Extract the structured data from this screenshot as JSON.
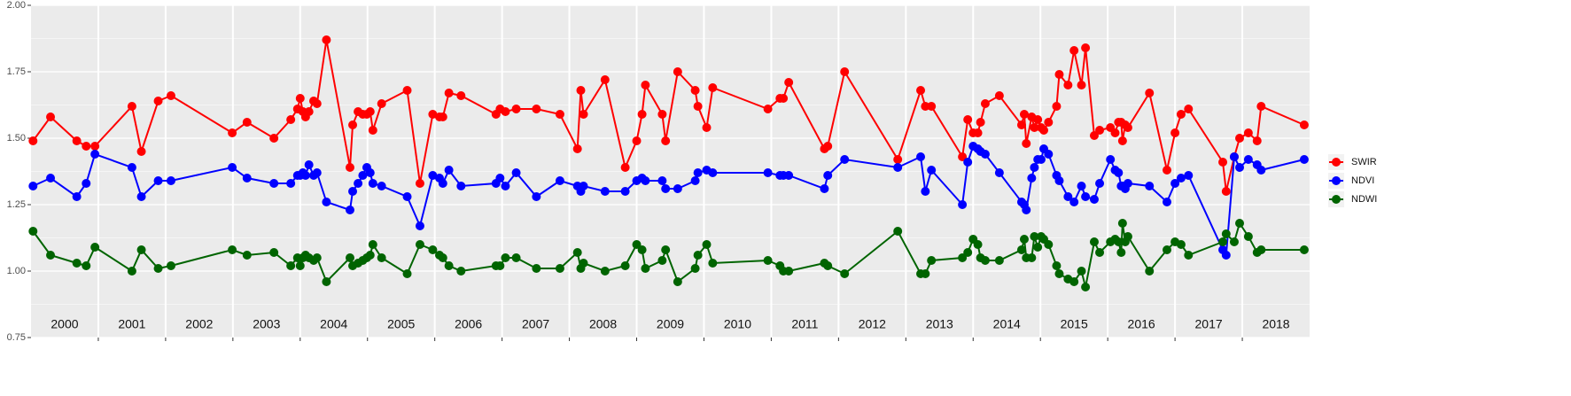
{
  "chart_data": {
    "type": "line",
    "year_labels": [
      "2000",
      "2001",
      "2002",
      "2003",
      "2004",
      "2005",
      "2006",
      "2007",
      "2008",
      "2009",
      "2010",
      "2011",
      "2012",
      "2013",
      "2014",
      "2015",
      "2016",
      "2017",
      "2018"
    ],
    "x": [
      2000.03,
      2000.29,
      2000.68,
      2000.82,
      2000.95,
      2001.5,
      2001.64,
      2001.89,
      2002.08,
      2002.99,
      2003.21,
      2003.61,
      2003.86,
      2003.96,
      2004.0,
      2004.04,
      2004.08,
      2004.13,
      2004.2,
      2004.25,
      2004.39,
      2004.74,
      2004.78,
      2004.86,
      2004.93,
      2004.99,
      2005.04,
      2005.08,
      2005.21,
      2005.59,
      2005.78,
      2005.97,
      2006.07,
      2006.12,
      2006.21,
      2006.39,
      2006.91,
      2006.97,
      2007.05,
      2007.21,
      2007.51,
      2007.86,
      2008.12,
      2008.17,
      2008.21,
      2008.53,
      2008.83,
      2009.0,
      2009.08,
      2009.13,
      2009.38,
      2009.43,
      2009.61,
      2009.87,
      2009.91,
      2010.04,
      2010.13,
      2010.95,
      2011.13,
      2011.18,
      2011.26,
      2011.79,
      2011.84,
      2012.09,
      2012.88,
      2013.22,
      2013.29,
      2013.38,
      2013.84,
      2013.92,
      2014.0,
      2014.07,
      2014.11,
      2014.18,
      2014.39,
      2014.72,
      2014.76,
      2014.79,
      2014.87,
      2014.91,
      2014.96,
      2015.01,
      2015.05,
      2015.12,
      2015.24,
      2015.28,
      2015.41,
      2015.5,
      2015.61,
      2015.67,
      2015.8,
      2015.88,
      2016.04,
      2016.11,
      2016.16,
      2016.2,
      2016.22,
      2016.26,
      2016.3,
      2016.62,
      2016.88,
      2017.0,
      2017.09,
      2017.2,
      2017.71,
      2017.76,
      2017.88,
      2017.96,
      2018.09,
      2018.22,
      2018.28,
      2018.92
    ],
    "series": [
      {
        "name": "SWIR",
        "color": "#ff0000",
        "values": [
          1.49,
          1.58,
          1.49,
          1.47,
          1.47,
          1.62,
          1.45,
          1.64,
          1.66,
          1.52,
          1.56,
          1.5,
          1.57,
          1.61,
          1.65,
          1.6,
          1.58,
          1.6,
          1.64,
          1.63,
          1.87,
          1.39,
          1.55,
          1.6,
          1.59,
          1.59,
          1.6,
          1.53,
          1.63,
          1.68,
          1.33,
          1.59,
          1.58,
          1.58,
          1.67,
          1.66,
          1.59,
          1.61,
          1.6,
          1.61,
          1.61,
          1.59,
          1.46,
          1.68,
          1.59,
          1.72,
          1.39,
          1.49,
          1.59,
          1.7,
          1.59,
          1.49,
          1.75,
          1.68,
          1.62,
          1.54,
          1.69,
          1.61,
          1.65,
          1.65,
          1.71,
          1.46,
          1.47,
          1.75,
          1.42,
          1.68,
          1.62,
          1.62,
          1.43,
          1.57,
          1.52,
          1.52,
          1.56,
          1.63,
          1.66,
          1.55,
          1.59,
          1.48,
          1.58,
          1.54,
          1.57,
          1.54,
          1.53,
          1.56,
          1.62,
          1.74,
          1.7,
          1.83,
          1.7,
          1.84,
          1.51,
          1.53,
          1.54,
          1.52,
          1.56,
          1.56,
          1.49,
          1.55,
          1.54,
          1.67,
          1.38,
          1.52,
          1.59,
          1.61,
          1.41,
          1.3,
          1.43,
          1.5,
          1.52,
          1.49,
          1.62,
          1.55
        ]
      },
      {
        "name": "NDVI",
        "color": "#0000ff",
        "values": [
          1.32,
          1.35,
          1.28,
          1.33,
          1.44,
          1.39,
          1.28,
          1.34,
          1.34,
          1.39,
          1.35,
          1.33,
          1.33,
          1.36,
          1.36,
          1.37,
          1.36,
          1.4,
          1.36,
          1.37,
          1.26,
          1.23,
          1.3,
          1.33,
          1.36,
          1.39,
          1.37,
          1.33,
          1.32,
          1.28,
          1.17,
          1.36,
          1.35,
          1.33,
          1.38,
          1.32,
          1.33,
          1.35,
          1.32,
          1.37,
          1.28,
          1.34,
          1.32,
          1.3,
          1.32,
          1.3,
          1.3,
          1.34,
          1.35,
          1.34,
          1.34,
          1.31,
          1.31,
          1.34,
          1.37,
          1.38,
          1.37,
          1.37,
          1.36,
          1.36,
          1.36,
          1.31,
          1.36,
          1.42,
          1.39,
          1.43,
          1.3,
          1.38,
          1.25,
          1.41,
          1.47,
          1.46,
          1.45,
          1.44,
          1.37,
          1.26,
          1.25,
          1.23,
          1.35,
          1.39,
          1.42,
          1.42,
          1.46,
          1.44,
          1.36,
          1.34,
          1.28,
          1.26,
          1.32,
          1.28,
          1.27,
          1.33,
          1.42,
          1.38,
          1.37,
          1.32,
          1.32,
          1.31,
          1.33,
          1.32,
          1.26,
          1.33,
          1.35,
          1.36,
          1.08,
          1.06,
          1.43,
          1.39,
          1.42,
          1.4,
          1.38,
          1.42
        ]
      },
      {
        "name": "NDWI",
        "color": "#006400",
        "values": [
          1.15,
          1.06,
          1.03,
          1.02,
          1.09,
          1.0,
          1.08,
          1.01,
          1.02,
          1.08,
          1.06,
          1.07,
          1.02,
          1.05,
          1.02,
          1.05,
          1.06,
          1.05,
          1.04,
          1.05,
          0.96,
          1.05,
          1.02,
          1.03,
          1.04,
          1.05,
          1.06,
          1.1,
          1.05,
          0.99,
          1.1,
          1.08,
          1.06,
          1.05,
          1.02,
          1.0,
          1.02,
          1.02,
          1.05,
          1.05,
          1.01,
          1.01,
          1.07,
          1.01,
          1.03,
          1.0,
          1.02,
          1.1,
          1.08,
          1.01,
          1.04,
          1.08,
          0.96,
          1.01,
          1.06,
          1.1,
          1.03,
          1.04,
          1.02,
          1.0,
          1.0,
          1.03,
          1.02,
          0.99,
          1.15,
          0.99,
          0.99,
          1.04,
          1.05,
          1.07,
          1.12,
          1.1,
          1.05,
          1.04,
          1.04,
          1.08,
          1.12,
          1.05,
          1.05,
          1.13,
          1.09,
          1.13,
          1.12,
          1.1,
          1.02,
          0.99,
          0.97,
          0.96,
          1.0,
          0.94,
          1.11,
          1.07,
          1.11,
          1.12,
          1.11,
          1.07,
          1.18,
          1.11,
          1.13,
          1.0,
          1.08,
          1.11,
          1.1,
          1.06,
          1.11,
          1.14,
          1.11,
          1.18,
          1.13,
          1.07,
          1.08,
          1.08
        ]
      }
    ],
    "xlim": [
      2000,
      2019
    ],
    "xticks": [
      2001,
      2002,
      2003,
      2004,
      2005,
      2006,
      2007,
      2008,
      2009,
      2010,
      2011,
      2012,
      2013,
      2014,
      2015,
      2016,
      2017,
      2018
    ],
    "ylim": [
      0.75,
      2
    ],
    "yticks": [
      0.75,
      {
        "value": 1,
        "label": "1.00"
      },
      1.25,
      {
        "value": 1.5,
        "label": "1.50"
      },
      1.75,
      {
        "value": 2,
        "label": "2.00"
      }
    ],
    "grid": true,
    "legend": "right"
  }
}
